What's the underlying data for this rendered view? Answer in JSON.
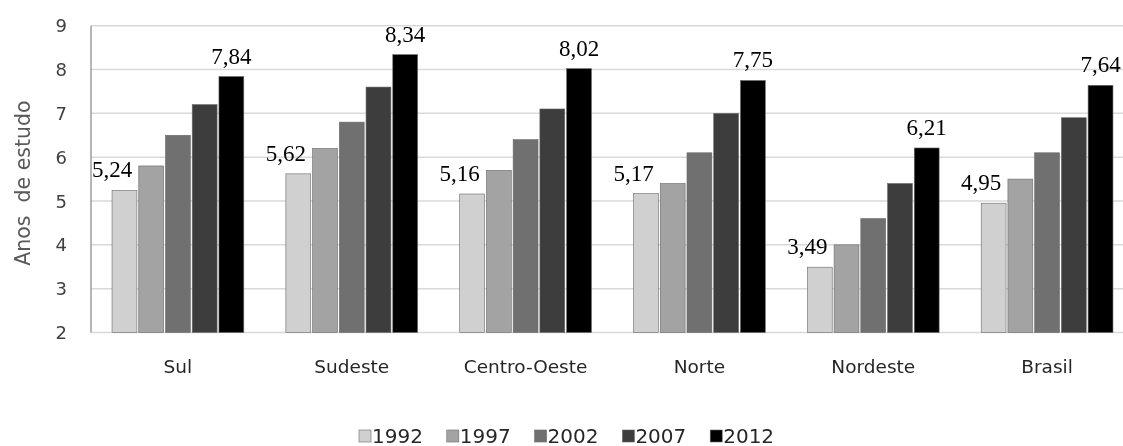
{
  "chart_data": {
    "type": "bar",
    "ylabel": "Anos  de estudo",
    "categories": [
      "Sul",
      "Sudeste",
      "Centro-Oeste",
      "Norte",
      "Nordeste",
      "Brasil"
    ],
    "series": [
      {
        "name": "1992",
        "color": "#d0d0d0",
        "values": [
          5.24,
          5.62,
          5.16,
          5.17,
          3.49,
          4.95
        ],
        "value_labels": [
          "5,24",
          "5,62",
          "5,16",
          "5,17",
          "3,49",
          "4,95"
        ]
      },
      {
        "name": "1997",
        "color": "#a3a3a3",
        "values": [
          5.8,
          6.2,
          5.7,
          5.4,
          4.0,
          5.5
        ]
      },
      {
        "name": "2002",
        "color": "#707070",
        "values": [
          6.5,
          6.8,
          6.4,
          6.1,
          4.6,
          6.1
        ]
      },
      {
        "name": "2007",
        "color": "#3d3d3d",
        "values": [
          7.2,
          7.6,
          7.1,
          7.0,
          5.4,
          6.9
        ]
      },
      {
        "name": "2012",
        "color": "#000000",
        "values": [
          7.84,
          8.34,
          8.02,
          7.75,
          6.21,
          7.64
        ],
        "value_labels": [
          "7,84",
          "8,34",
          "8,02",
          "7,75",
          "6,21",
          "7,64"
        ]
      }
    ],
    "ylim": [
      2,
      9
    ],
    "yticks": [
      2,
      3,
      4,
      5,
      6,
      7,
      8,
      9
    ],
    "grid": "y",
    "legend": "bottom"
  }
}
